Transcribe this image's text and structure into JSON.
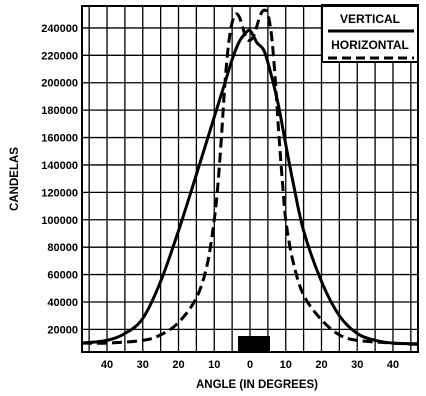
{
  "chart_data": {
    "type": "line",
    "title": "",
    "xlabel": "ANGLE (IN DEGREES)",
    "ylabel": "CANDELAS",
    "x_ticks": [
      40,
      30,
      20,
      10,
      0,
      10,
      20,
      30,
      40
    ],
    "x_tick_values": [
      -40,
      -30,
      -20,
      -10,
      0,
      10,
      20,
      30,
      40
    ],
    "xlim": [
      -47,
      47
    ],
    "y_ticks": [
      "20000",
      "40000",
      "60000",
      "80000",
      "100000",
      "120000",
      "140000",
      "160000",
      "180000",
      "200000",
      "220000",
      "240000"
    ],
    "y_tick_values": [
      20000,
      40000,
      60000,
      80000,
      100000,
      120000,
      140000,
      160000,
      180000,
      200000,
      220000,
      240000
    ],
    "ylim": [
      3500,
      256000
    ],
    "grid": true,
    "legend_position": "top-right",
    "series": [
      {
        "name": "VERTICAL",
        "line_style": "solid",
        "x": [
          -47,
          -40,
          -35,
          -30,
          -25,
          -20,
          -15,
          -10,
          -7,
          -5,
          -3,
          -1,
          0,
          1,
          2,
          4,
          6,
          8,
          10,
          12,
          15,
          20,
          25,
          30,
          35,
          40,
          47
        ],
        "y": [
          10000,
          12000,
          17000,
          28000,
          55000,
          92000,
          133000,
          175000,
          200000,
          217000,
          230000,
          237000,
          238000,
          234000,
          229000,
          223000,
          205000,
          183000,
          155000,
          128000,
          92000,
          55000,
          30000,
          17000,
          12000,
          10000,
          9500
        ]
      },
      {
        "name": "HORIZONTAL",
        "line_style": "dashed",
        "x": [
          -47,
          -40,
          -30,
          -25,
          -20,
          -15,
          -12,
          -10,
          -9,
          -8,
          -7,
          -6,
          -5,
          -4,
          -3,
          -2,
          -1,
          0,
          1,
          2,
          3,
          4,
          5,
          6,
          7,
          8,
          9,
          10,
          12,
          15,
          20,
          25,
          30,
          40,
          47
        ],
        "y": [
          10000,
          10000,
          12000,
          16000,
          25000,
          43000,
          67000,
          100000,
          125000,
          160000,
          200000,
          228000,
          244000,
          250000,
          248000,
          240000,
          232000,
          231000,
          234000,
          242000,
          250000,
          253000,
          250000,
          235000,
          205000,
          165000,
          130000,
          100000,
          70000,
          45000,
          27000,
          16000,
          12000,
          10000,
          9000
        ]
      }
    ]
  }
}
